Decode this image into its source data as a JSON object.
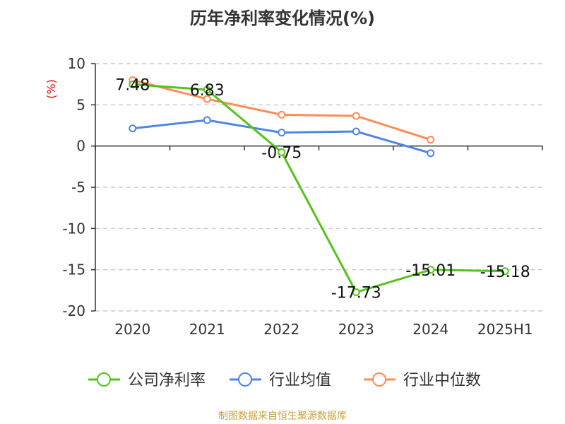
{
  "chart_data": {
    "type": "line",
    "title": "历年净利率变化情况(%)",
    "ylabel": "(%)",
    "xlabel": "",
    "categories": [
      "2020",
      "2021",
      "2022",
      "2023",
      "2024",
      "2025H1"
    ],
    "ylim": [
      -20,
      10
    ],
    "yticks": [
      10,
      5,
      0,
      -5,
      -10,
      -15,
      -20
    ],
    "grid": true,
    "legend_position": "bottom",
    "series": [
      {
        "name": "公司净利率",
        "color": "#52c41a",
        "values": [
          7.48,
          6.83,
          -0.75,
          -17.73,
          -15.01,
          -15.18
        ],
        "labels": [
          "7.48",
          "6.83",
          "-0.75",
          "-17.73",
          "-15.01",
          "-15.18"
        ]
      },
      {
        "name": "行业均值",
        "color": "#4e86e4",
        "values": [
          2.14,
          3.14,
          1.63,
          1.77,
          -0.86,
          null
        ]
      },
      {
        "name": "行业中位数",
        "color": "#ff8c55",
        "values": [
          8.0,
          5.71,
          3.8,
          3.66,
          0.77,
          null
        ]
      }
    ]
  },
  "source": "制图数据来自恒生聚源数据库"
}
